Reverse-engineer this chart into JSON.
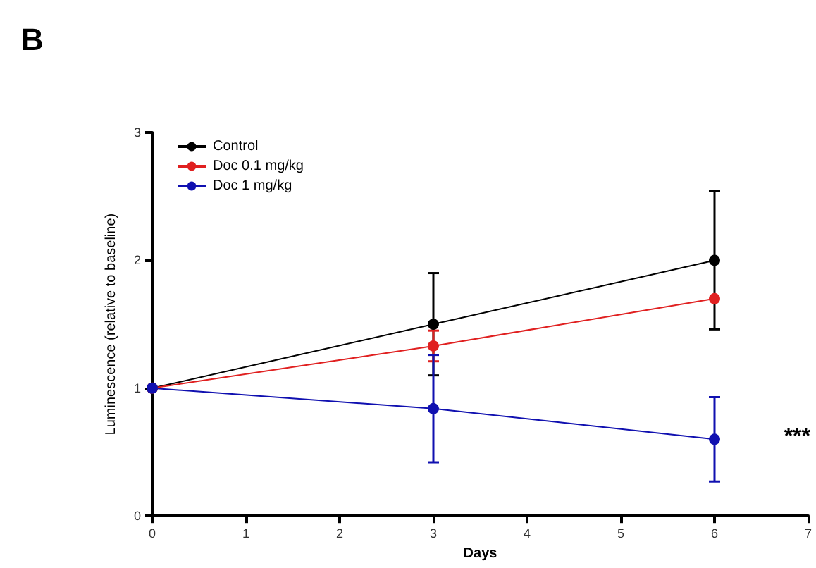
{
  "chart_data": {
    "type": "line",
    "title": "B",
    "xlabel": "Days",
    "ylabel": "Luminescence (relative to baseline)",
    "x": [
      0,
      3,
      6
    ],
    "xlim": [
      0,
      7
    ],
    "xticks": [
      0,
      1,
      2,
      3,
      4,
      5,
      6,
      7
    ],
    "ylim": [
      0,
      3
    ],
    "yticks": [
      0,
      1,
      2,
      3
    ],
    "series": [
      {
        "name": "Control",
        "color": "#000000",
        "values": [
          1,
          1.5,
          2.0
        ],
        "errors": [
          null,
          0.4,
          0.54
        ]
      },
      {
        "name": "Doc 0.1 mg/kg",
        "color": "#e02020",
        "values": [
          1,
          1.33,
          1.7
        ],
        "errors": [
          null,
          0.12,
          null
        ]
      },
      {
        "name": "Doc 1 mg/kg",
        "color": "#1010b0",
        "values": [
          1,
          0.84,
          0.6
        ],
        "errors": [
          null,
          0.42,
          0.33
        ]
      }
    ],
    "annotations": [
      "***"
    ],
    "legend": "top left",
    "grid": false,
    "marker": "circle",
    "line_style": "solid"
  }
}
